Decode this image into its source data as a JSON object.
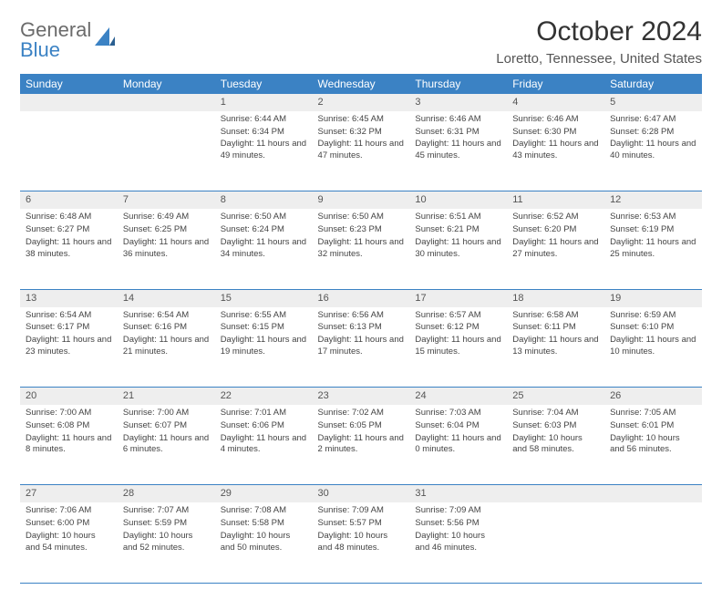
{
  "logo": {
    "part1": "General",
    "part2": "Blue"
  },
  "title": "October 2024",
  "location": "Loretto, Tennessee, United States",
  "colors": {
    "header_bg": "#3b82c4",
    "header_fg": "#ffffff",
    "daynum_bg": "#eeeeee",
    "rule": "#3b82c4",
    "text": "#444444",
    "logo_gray": "#6b6b6b",
    "logo_blue": "#3b82c4"
  },
  "day_headers": [
    "Sunday",
    "Monday",
    "Tuesday",
    "Wednesday",
    "Thursday",
    "Friday",
    "Saturday"
  ],
  "weeks": [
    [
      null,
      null,
      {
        "n": "1",
        "sunrise": "Sunrise: 6:44 AM",
        "sunset": "Sunset: 6:34 PM",
        "daylight": "Daylight: 11 hours and 49 minutes."
      },
      {
        "n": "2",
        "sunrise": "Sunrise: 6:45 AM",
        "sunset": "Sunset: 6:32 PM",
        "daylight": "Daylight: 11 hours and 47 minutes."
      },
      {
        "n": "3",
        "sunrise": "Sunrise: 6:46 AM",
        "sunset": "Sunset: 6:31 PM",
        "daylight": "Daylight: 11 hours and 45 minutes."
      },
      {
        "n": "4",
        "sunrise": "Sunrise: 6:46 AM",
        "sunset": "Sunset: 6:30 PM",
        "daylight": "Daylight: 11 hours and 43 minutes."
      },
      {
        "n": "5",
        "sunrise": "Sunrise: 6:47 AM",
        "sunset": "Sunset: 6:28 PM",
        "daylight": "Daylight: 11 hours and 40 minutes."
      }
    ],
    [
      {
        "n": "6",
        "sunrise": "Sunrise: 6:48 AM",
        "sunset": "Sunset: 6:27 PM",
        "daylight": "Daylight: 11 hours and 38 minutes."
      },
      {
        "n": "7",
        "sunrise": "Sunrise: 6:49 AM",
        "sunset": "Sunset: 6:25 PM",
        "daylight": "Daylight: 11 hours and 36 minutes."
      },
      {
        "n": "8",
        "sunrise": "Sunrise: 6:50 AM",
        "sunset": "Sunset: 6:24 PM",
        "daylight": "Daylight: 11 hours and 34 minutes."
      },
      {
        "n": "9",
        "sunrise": "Sunrise: 6:50 AM",
        "sunset": "Sunset: 6:23 PM",
        "daylight": "Daylight: 11 hours and 32 minutes."
      },
      {
        "n": "10",
        "sunrise": "Sunrise: 6:51 AM",
        "sunset": "Sunset: 6:21 PM",
        "daylight": "Daylight: 11 hours and 30 minutes."
      },
      {
        "n": "11",
        "sunrise": "Sunrise: 6:52 AM",
        "sunset": "Sunset: 6:20 PM",
        "daylight": "Daylight: 11 hours and 27 minutes."
      },
      {
        "n": "12",
        "sunrise": "Sunrise: 6:53 AM",
        "sunset": "Sunset: 6:19 PM",
        "daylight": "Daylight: 11 hours and 25 minutes."
      }
    ],
    [
      {
        "n": "13",
        "sunrise": "Sunrise: 6:54 AM",
        "sunset": "Sunset: 6:17 PM",
        "daylight": "Daylight: 11 hours and 23 minutes."
      },
      {
        "n": "14",
        "sunrise": "Sunrise: 6:54 AM",
        "sunset": "Sunset: 6:16 PM",
        "daylight": "Daylight: 11 hours and 21 minutes."
      },
      {
        "n": "15",
        "sunrise": "Sunrise: 6:55 AM",
        "sunset": "Sunset: 6:15 PM",
        "daylight": "Daylight: 11 hours and 19 minutes."
      },
      {
        "n": "16",
        "sunrise": "Sunrise: 6:56 AM",
        "sunset": "Sunset: 6:13 PM",
        "daylight": "Daylight: 11 hours and 17 minutes."
      },
      {
        "n": "17",
        "sunrise": "Sunrise: 6:57 AM",
        "sunset": "Sunset: 6:12 PM",
        "daylight": "Daylight: 11 hours and 15 minutes."
      },
      {
        "n": "18",
        "sunrise": "Sunrise: 6:58 AM",
        "sunset": "Sunset: 6:11 PM",
        "daylight": "Daylight: 11 hours and 13 minutes."
      },
      {
        "n": "19",
        "sunrise": "Sunrise: 6:59 AM",
        "sunset": "Sunset: 6:10 PM",
        "daylight": "Daylight: 11 hours and 10 minutes."
      }
    ],
    [
      {
        "n": "20",
        "sunrise": "Sunrise: 7:00 AM",
        "sunset": "Sunset: 6:08 PM",
        "daylight": "Daylight: 11 hours and 8 minutes."
      },
      {
        "n": "21",
        "sunrise": "Sunrise: 7:00 AM",
        "sunset": "Sunset: 6:07 PM",
        "daylight": "Daylight: 11 hours and 6 minutes."
      },
      {
        "n": "22",
        "sunrise": "Sunrise: 7:01 AM",
        "sunset": "Sunset: 6:06 PM",
        "daylight": "Daylight: 11 hours and 4 minutes."
      },
      {
        "n": "23",
        "sunrise": "Sunrise: 7:02 AM",
        "sunset": "Sunset: 6:05 PM",
        "daylight": "Daylight: 11 hours and 2 minutes."
      },
      {
        "n": "24",
        "sunrise": "Sunrise: 7:03 AM",
        "sunset": "Sunset: 6:04 PM",
        "daylight": "Daylight: 11 hours and 0 minutes."
      },
      {
        "n": "25",
        "sunrise": "Sunrise: 7:04 AM",
        "sunset": "Sunset: 6:03 PM",
        "daylight": "Daylight: 10 hours and 58 minutes."
      },
      {
        "n": "26",
        "sunrise": "Sunrise: 7:05 AM",
        "sunset": "Sunset: 6:01 PM",
        "daylight": "Daylight: 10 hours and 56 minutes."
      }
    ],
    [
      {
        "n": "27",
        "sunrise": "Sunrise: 7:06 AM",
        "sunset": "Sunset: 6:00 PM",
        "daylight": "Daylight: 10 hours and 54 minutes."
      },
      {
        "n": "28",
        "sunrise": "Sunrise: 7:07 AM",
        "sunset": "Sunset: 5:59 PM",
        "daylight": "Daylight: 10 hours and 52 minutes."
      },
      {
        "n": "29",
        "sunrise": "Sunrise: 7:08 AM",
        "sunset": "Sunset: 5:58 PM",
        "daylight": "Daylight: 10 hours and 50 minutes."
      },
      {
        "n": "30",
        "sunrise": "Sunrise: 7:09 AM",
        "sunset": "Sunset: 5:57 PM",
        "daylight": "Daylight: 10 hours and 48 minutes."
      },
      {
        "n": "31",
        "sunrise": "Sunrise: 7:09 AM",
        "sunset": "Sunset: 5:56 PM",
        "daylight": "Daylight: 10 hours and 46 minutes."
      },
      null,
      null
    ]
  ]
}
